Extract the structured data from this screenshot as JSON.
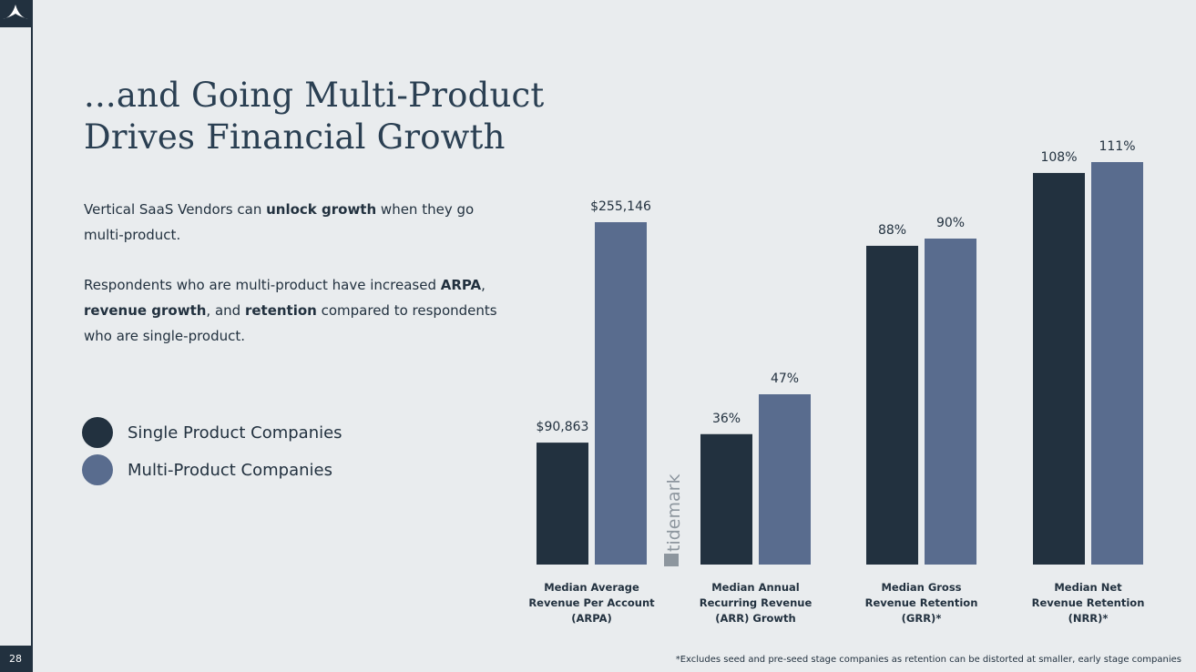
{
  "page_number": "28",
  "title_lines": [
    "...and Going Multi-Product",
    "Drives Financial Growth"
  ],
  "intro": {
    "p1": [
      "Vertical SaaS Vendors can ",
      "unlock growth",
      " when they go multi-product."
    ],
    "p2": [
      "Respondents who are multi-product have increased ",
      "ARPA",
      ", ",
      "revenue growth",
      ", and ",
      "retention",
      " compared to respondents who are single-product."
    ]
  },
  "legend": [
    {
      "label": "Single Product Companies",
      "color": "#22313f"
    },
    {
      "label": "Multi-Product Companies",
      "color": "#596c8e"
    }
  ],
  "watermark": "tidemark",
  "footnote": "*Excludes seed and pre-seed stage companies as retention can be distorted at smaller, early stage companies",
  "chart_data": {
    "type": "bar",
    "colors": [
      "#22313f",
      "#596c8e"
    ],
    "groups": [
      {
        "label_lines": [
          "Median Average",
          "Revenue Per Account",
          "(ARPA)"
        ],
        "bars": [
          {
            "value": 90863,
            "label": "$90,863"
          },
          {
            "value": 255146,
            "label": "$255,146"
          }
        ]
      },
      {
        "label_lines": [
          "Median Annual",
          "Recurring Revenue",
          "(ARR) Growth"
        ],
        "bars": [
          {
            "value": 36,
            "label": "36%"
          },
          {
            "value": 47,
            "label": "47%"
          }
        ]
      },
      {
        "label_lines": [
          "Median Gross",
          "Revenue Retention",
          "(GRR)*"
        ],
        "bars": [
          {
            "value": 88,
            "label": "88%"
          },
          {
            "value": 90,
            "label": "90%"
          }
        ]
      },
      {
        "label_lines": [
          "Median Net",
          "Revenue Retention",
          "(NRR)*"
        ],
        "bars": [
          {
            "value": 108,
            "label": "108%"
          },
          {
            "value": 111,
            "label": "111%"
          }
        ]
      }
    ]
  }
}
